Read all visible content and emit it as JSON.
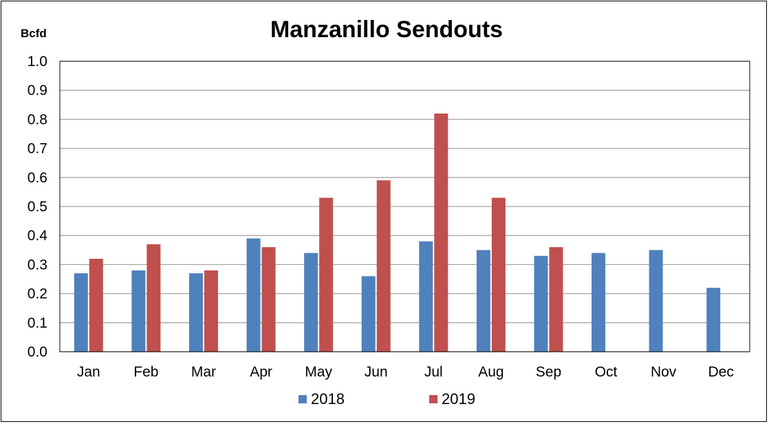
{
  "chart_data": {
    "type": "bar",
    "title": "Manzanillo Sendouts",
    "ylabel": "Bcfd",
    "xlabel": "",
    "ylim": [
      0,
      1.0
    ],
    "yticks": [
      "0.0",
      "0.1",
      "0.2",
      "0.3",
      "0.4",
      "0.5",
      "0.6",
      "0.7",
      "0.8",
      "0.9",
      "1.0"
    ],
    "categories": [
      "Jan",
      "Feb",
      "Mar",
      "Apr",
      "May",
      "Jun",
      "Jul",
      "Aug",
      "Sep",
      "Oct",
      "Nov",
      "Dec"
    ],
    "grid": true,
    "legend_position": "bottom",
    "series": [
      {
        "name": "2018",
        "color": "#4f81bd",
        "values": [
          0.27,
          0.28,
          0.27,
          0.39,
          0.34,
          0.26,
          0.38,
          0.35,
          0.33,
          0.34,
          0.35,
          0.22
        ]
      },
      {
        "name": "2019",
        "color": "#c0504d",
        "values": [
          0.32,
          0.37,
          0.28,
          0.36,
          0.53,
          0.59,
          0.82,
          0.53,
          0.36,
          null,
          null,
          null
        ]
      }
    ]
  }
}
